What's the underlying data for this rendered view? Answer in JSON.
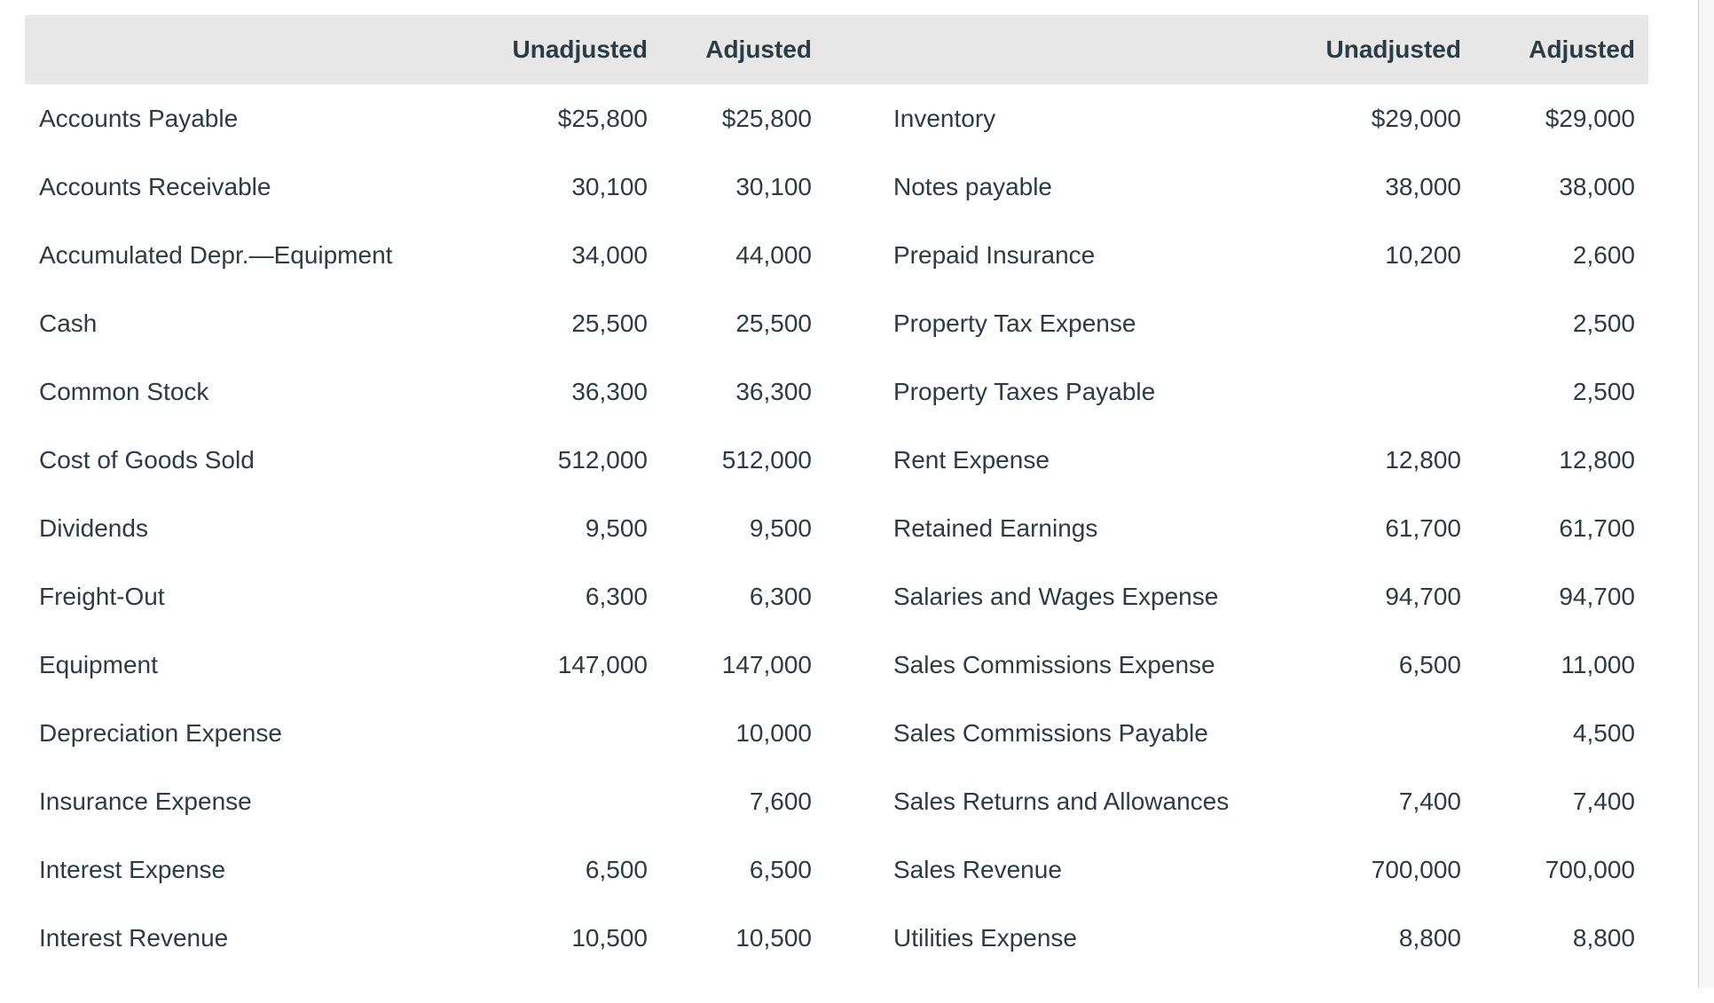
{
  "colors": {
    "header_bg": "#e7e7e7",
    "text": "#2d3b45",
    "scrollbar_track": "#f7f7f7",
    "scrollbar_border": "#cfcfcf"
  },
  "table": {
    "header": {
      "unadjusted": "Unadjusted",
      "adjusted": "Adjusted"
    },
    "left_rows": [
      {
        "account": "Accounts Payable",
        "unadjusted": "$25,800",
        "adjusted": "$25,800"
      },
      {
        "account": "Accounts Receivable",
        "unadjusted": "30,100",
        "adjusted": "30,100"
      },
      {
        "account": "Accumulated Depr.—Equipment",
        "unadjusted": "34,000",
        "adjusted": "44,000"
      },
      {
        "account": "Cash",
        "unadjusted": "25,500",
        "adjusted": "25,500"
      },
      {
        "account": "Common Stock",
        "unadjusted": "36,300",
        "adjusted": "36,300"
      },
      {
        "account": "Cost of Goods Sold",
        "unadjusted": "512,000",
        "adjusted": "512,000"
      },
      {
        "account": "Dividends",
        "unadjusted": "9,500",
        "adjusted": "9,500"
      },
      {
        "account": "Freight-Out",
        "unadjusted": "6,300",
        "adjusted": "6,300"
      },
      {
        "account": "Equipment",
        "unadjusted": "147,000",
        "adjusted": "147,000"
      },
      {
        "account": "Depreciation Expense",
        "unadjusted": "",
        "adjusted": "10,000"
      },
      {
        "account": "Insurance Expense",
        "unadjusted": "",
        "adjusted": "7,600"
      },
      {
        "account": "Interest Expense",
        "unadjusted": "6,500",
        "adjusted": "6,500"
      },
      {
        "account": "Interest Revenue",
        "unadjusted": "10,500",
        "adjusted": "10,500"
      }
    ],
    "right_rows": [
      {
        "account": "Inventory",
        "unadjusted": "$29,000",
        "adjusted": "$29,000"
      },
      {
        "account": "Notes payable",
        "unadjusted": "38,000",
        "adjusted": "38,000"
      },
      {
        "account": "Prepaid Insurance",
        "unadjusted": "10,200",
        "adjusted": "2,600"
      },
      {
        "account": "Property Tax Expense",
        "unadjusted": "",
        "adjusted": "2,500"
      },
      {
        "account": "Property Taxes Payable",
        "unadjusted": "",
        "adjusted": "2,500"
      },
      {
        "account": "Rent Expense",
        "unadjusted": "12,800",
        "adjusted": "12,800"
      },
      {
        "account": "Retained Earnings",
        "unadjusted": "61,700",
        "adjusted": "61,700"
      },
      {
        "account": "Salaries and Wages Expense",
        "unadjusted": "94,700",
        "adjusted": "94,700"
      },
      {
        "account": "Sales Commissions Expense",
        "unadjusted": "6,500",
        "adjusted": "11,000"
      },
      {
        "account": "Sales Commissions Payable",
        "unadjusted": "",
        "adjusted": "4,500"
      },
      {
        "account": "Sales Returns and Allowances",
        "unadjusted": "7,400",
        "adjusted": "7,400"
      },
      {
        "account": "Sales Revenue",
        "unadjusted": "700,000",
        "adjusted": "700,000"
      },
      {
        "account": "Utilities Expense",
        "unadjusted": "8,800",
        "adjusted": "8,800"
      }
    ]
  }
}
